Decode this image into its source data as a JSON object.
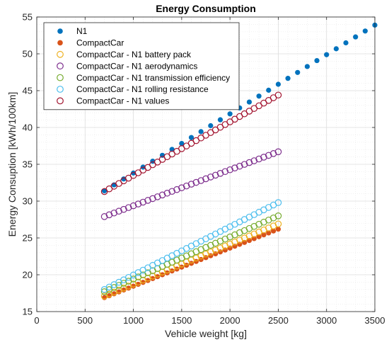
{
  "chart_data": {
    "type": "scatter",
    "title": "Energy Consumption",
    "xlabel": "Vehicle weight [kg]",
    "ylabel": "Energy Consuption [kWh/100km]",
    "xlim": [
      0,
      3500
    ],
    "ylim": [
      15,
      55
    ],
    "xticks": [
      0,
      500,
      1000,
      1500,
      2000,
      2500,
      3000,
      3500
    ],
    "yticks": [
      15,
      20,
      25,
      30,
      35,
      40,
      45,
      50,
      55
    ],
    "grid": true,
    "minor_grid": true,
    "legend_position": "top-left",
    "series": [
      {
        "name": "N1",
        "marker": "filled",
        "color": "#0072BD",
        "x_start": 700,
        "x_end": 3500,
        "x_step": 100,
        "y_start": 31.4,
        "y_end": 53.9
      },
      {
        "name": "CompactCar",
        "marker": "filled",
        "color": "#D95319",
        "x_start": 700,
        "x_end": 2500,
        "x_step": 50,
        "y_start": 16.9,
        "y_end": 26.2
      },
      {
        "name": "CompactCar - N1 battery pack",
        "marker": "open",
        "color": "#EDB120",
        "x_start": 700,
        "x_end": 2500,
        "x_step": 50,
        "y_start": 17.1,
        "y_end": 26.9
      },
      {
        "name": "CompactCar - N1 aerodynamics",
        "marker": "open",
        "color": "#7E2F8E",
        "x_start": 700,
        "x_end": 2500,
        "x_step": 50,
        "y_start": 27.9,
        "y_end": 36.7
      },
      {
        "name": "CompactCar - N1 transmission efficiency",
        "marker": "open",
        "color": "#77AC30",
        "x_start": 700,
        "x_end": 2500,
        "x_step": 50,
        "y_start": 17.7,
        "y_end": 28.0
      },
      {
        "name": "CompactCar - N1 rolling resistance",
        "marker": "open",
        "color": "#4DBEEE",
        "x_start": 700,
        "x_end": 2500,
        "x_step": 50,
        "y_start": 18.0,
        "y_end": 29.8
      },
      {
        "name": "CompactCar - N1 values",
        "marker": "open",
        "color": "#A2142F",
        "x_start": 700,
        "x_end": 2500,
        "x_step": 50,
        "y_start": 31.3,
        "y_end": 44.4
      }
    ]
  }
}
